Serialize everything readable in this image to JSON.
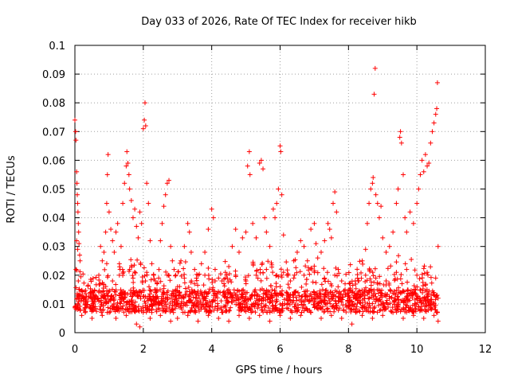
{
  "chart_data": {
    "type": "scatter",
    "title": "Day 033 of 2026, Rate Of TEC Index for receiver hikb",
    "xlabel": "GPS time / hours",
    "ylabel": "ROTI / TECUs",
    "xlim": [
      0,
      12
    ],
    "ylim": [
      0,
      0.1
    ],
    "xticks": [
      0,
      2,
      4,
      6,
      8,
      10,
      12
    ],
    "xtick_labels": [
      "0",
      "2",
      "4",
      "6",
      "8",
      "10",
      "12"
    ],
    "yticks": [
      0,
      0.01,
      0.02,
      0.03,
      0.04,
      0.05,
      0.06,
      0.07,
      0.08,
      0.09,
      0.1
    ],
    "ytick_labels": [
      "0",
      "0.01",
      "0.02",
      "0.03",
      "0.04",
      "0.05",
      "0.06",
      "0.07",
      "0.08",
      "0.09",
      "0.1"
    ],
    "grid": true,
    "marker": "+",
    "series": [
      {
        "name": "ROTI",
        "color": "#ff0000",
        "points": [
          [
            0.0,
            0.074
          ],
          [
            0.02,
            0.07
          ],
          [
            0.03,
            0.067
          ],
          [
            0.05,
            0.056
          ],
          [
            0.06,
            0.052
          ],
          [
            0.07,
            0.048
          ],
          [
            0.08,
            0.045
          ],
          [
            0.09,
            0.042
          ],
          [
            0.1,
            0.038
          ],
          [
            0.11,
            0.035
          ],
          [
            0.12,
            0.031
          ],
          [
            0.14,
            0.027
          ],
          [
            0.15,
            0.025
          ],
          [
            0.05,
            0.032
          ],
          [
            0.08,
            0.029
          ],
          [
            0.03,
            0.022
          ],
          [
            0.1,
            0.018
          ],
          [
            0.12,
            0.015
          ],
          [
            0.15,
            0.013
          ],
          [
            0.2,
            0.012
          ],
          [
            0.25,
            0.011
          ],
          [
            0.3,
            0.01
          ],
          [
            0.35,
            0.009
          ],
          [
            0.4,
            0.012
          ],
          [
            0.45,
            0.014
          ],
          [
            0.5,
            0.011
          ],
          [
            0.55,
            0.013
          ],
          [
            0.6,
            0.009
          ],
          [
            0.65,
            0.012
          ],
          [
            0.7,
            0.02
          ],
          [
            0.75,
            0.03
          ],
          [
            0.8,
            0.025
          ],
          [
            0.85,
            0.028
          ],
          [
            0.9,
            0.035
          ],
          [
            0.93,
            0.045
          ],
          [
            0.95,
            0.055
          ],
          [
            0.97,
            0.062
          ],
          [
            1.0,
            0.042
          ],
          [
            1.05,
            0.036
          ],
          [
            1.1,
            0.032
          ],
          [
            1.15,
            0.028
          ],
          [
            1.2,
            0.035
          ],
          [
            1.25,
            0.038
          ],
          [
            1.3,
            0.024
          ],
          [
            1.35,
            0.03
          ],
          [
            1.4,
            0.045
          ],
          [
            1.45,
            0.052
          ],
          [
            1.5,
            0.058
          ],
          [
            1.52,
            0.063
          ],
          [
            1.55,
            0.059
          ],
          [
            1.58,
            0.055
          ],
          [
            1.6,
            0.05
          ],
          [
            1.65,
            0.046
          ],
          [
            1.7,
            0.04
          ],
          [
            1.75,
            0.043
          ],
          [
            1.8,
            0.037
          ],
          [
            1.85,
            0.033
          ],
          [
            1.9,
            0.042
          ],
          [
            1.95,
            0.038
          ],
          [
            2.0,
            0.071
          ],
          [
            2.03,
            0.074
          ],
          [
            2.05,
            0.08
          ],
          [
            2.07,
            0.072
          ],
          [
            2.1,
            0.052
          ],
          [
            2.15,
            0.045
          ],
          [
            2.2,
            0.032
          ],
          [
            2.25,
            0.024
          ],
          [
            2.3,
            0.02
          ],
          [
            2.35,
            0.018
          ],
          [
            2.4,
            0.015
          ],
          [
            2.45,
            0.019
          ],
          [
            2.5,
            0.032
          ],
          [
            2.55,
            0.038
          ],
          [
            2.6,
            0.044
          ],
          [
            2.65,
            0.048
          ],
          [
            2.7,
            0.052
          ],
          [
            2.75,
            0.053
          ],
          [
            2.8,
            0.03
          ],
          [
            2.85,
            0.025
          ],
          [
            2.9,
            0.022
          ],
          [
            2.95,
            0.02
          ],
          [
            3.0,
            0.016
          ],
          [
            3.1,
            0.025
          ],
          [
            3.2,
            0.03
          ],
          [
            3.3,
            0.038
          ],
          [
            3.35,
            0.035
          ],
          [
            3.4,
            0.028
          ],
          [
            3.5,
            0.022
          ],
          [
            3.6,
            0.02
          ],
          [
            3.7,
            0.024
          ],
          [
            3.8,
            0.028
          ],
          [
            3.9,
            0.036
          ],
          [
            4.0,
            0.043
          ],
          [
            4.05,
            0.04
          ],
          [
            4.1,
            0.022
          ],
          [
            4.2,
            0.019
          ],
          [
            4.3,
            0.018
          ],
          [
            4.4,
            0.021
          ],
          [
            4.5,
            0.023
          ],
          [
            4.6,
            0.03
          ],
          [
            4.7,
            0.036
          ],
          [
            4.8,
            0.028
          ],
          [
            4.9,
            0.033
          ],
          [
            5.0,
            0.035
          ],
          [
            5.05,
            0.058
          ],
          [
            5.1,
            0.063
          ],
          [
            5.12,
            0.055
          ],
          [
            5.2,
            0.038
          ],
          [
            5.3,
            0.033
          ],
          [
            5.4,
            0.059
          ],
          [
            5.45,
            0.06
          ],
          [
            5.5,
            0.057
          ],
          [
            5.55,
            0.04
          ],
          [
            5.6,
            0.035
          ],
          [
            5.7,
            0.03
          ],
          [
            5.8,
            0.043
          ],
          [
            5.85,
            0.04
          ],
          [
            5.9,
            0.045
          ],
          [
            5.95,
            0.05
          ],
          [
            6.0,
            0.065
          ],
          [
            6.02,
            0.063
          ],
          [
            6.05,
            0.048
          ],
          [
            6.1,
            0.034
          ],
          [
            6.2,
            0.02
          ],
          [
            6.3,
            0.018
          ],
          [
            6.4,
            0.025
          ],
          [
            6.5,
            0.028
          ],
          [
            6.6,
            0.032
          ],
          [
            6.7,
            0.03
          ],
          [
            6.8,
            0.025
          ],
          [
            6.9,
            0.036
          ],
          [
            7.0,
            0.038
          ],
          [
            7.05,
            0.031
          ],
          [
            7.1,
            0.026
          ],
          [
            7.2,
            0.028
          ],
          [
            7.3,
            0.032
          ],
          [
            7.4,
            0.038
          ],
          [
            7.45,
            0.036
          ],
          [
            7.5,
            0.033
          ],
          [
            7.55,
            0.045
          ],
          [
            7.6,
            0.049
          ],
          [
            7.65,
            0.042
          ],
          [
            7.7,
            0.022
          ],
          [
            7.8,
            0.018
          ],
          [
            7.9,
            0.015
          ],
          [
            8.0,
            0.013
          ],
          [
            8.1,
            0.014
          ],
          [
            8.2,
            0.012
          ],
          [
            8.3,
            0.018
          ],
          [
            8.4,
            0.025
          ],
          [
            8.5,
            0.029
          ],
          [
            8.55,
            0.038
          ],
          [
            8.6,
            0.045
          ],
          [
            8.65,
            0.05
          ],
          [
            8.7,
            0.052
          ],
          [
            8.72,
            0.054
          ],
          [
            8.75,
            0.083
          ],
          [
            8.78,
            0.092
          ],
          [
            8.8,
            0.048
          ],
          [
            8.85,
            0.045
          ],
          [
            8.9,
            0.04
          ],
          [
            8.95,
            0.044
          ],
          [
            9.0,
            0.033
          ],
          [
            9.1,
            0.028
          ],
          [
            9.2,
            0.03
          ],
          [
            9.3,
            0.035
          ],
          [
            9.4,
            0.045
          ],
          [
            9.45,
            0.05
          ],
          [
            9.5,
            0.068
          ],
          [
            9.52,
            0.07
          ],
          [
            9.55,
            0.066
          ],
          [
            9.6,
            0.055
          ],
          [
            9.65,
            0.04
          ],
          [
            9.7,
            0.035
          ],
          [
            9.8,
            0.042
          ],
          [
            9.9,
            0.038
          ],
          [
            10.0,
            0.045
          ],
          [
            10.05,
            0.05
          ],
          [
            10.1,
            0.055
          ],
          [
            10.15,
            0.06
          ],
          [
            10.2,
            0.056
          ],
          [
            10.25,
            0.062
          ],
          [
            10.3,
            0.058
          ],
          [
            10.35,
            0.059
          ],
          [
            10.4,
            0.066
          ],
          [
            10.45,
            0.07
          ],
          [
            10.5,
            0.073
          ],
          [
            10.55,
            0.076
          ],
          [
            10.58,
            0.078
          ],
          [
            10.6,
            0.087
          ],
          [
            10.62,
            0.03
          ],
          [
            10.62,
            0.012
          ],
          [
            10.6,
            0.007
          ],
          [
            10.62,
            0.004
          ],
          [
            0.2,
            0.006
          ],
          [
            0.3,
            0.007
          ],
          [
            0.5,
            0.005
          ],
          [
            0.8,
            0.006
          ],
          [
            1.0,
            0.007
          ],
          [
            1.2,
            0.005
          ],
          [
            1.5,
            0.006
          ],
          [
            1.8,
            0.003
          ],
          [
            1.9,
            0.002
          ],
          [
            2.2,
            0.005
          ],
          [
            2.5,
            0.006
          ],
          [
            2.8,
            0.004
          ],
          [
            3.0,
            0.005
          ],
          [
            3.3,
            0.006
          ],
          [
            3.6,
            0.004
          ],
          [
            3.9,
            0.006
          ],
          [
            4.2,
            0.005
          ],
          [
            4.5,
            0.004
          ],
          [
            4.8,
            0.006
          ],
          [
            5.1,
            0.005
          ],
          [
            5.4,
            0.006
          ],
          [
            5.7,
            0.004
          ],
          [
            6.0,
            0.006
          ],
          [
            6.3,
            0.005
          ],
          [
            6.6,
            0.006
          ],
          [
            6.9,
            0.007
          ],
          [
            7.2,
            0.005
          ],
          [
            7.5,
            0.006
          ],
          [
            7.8,
            0.005
          ],
          [
            8.1,
            0.003
          ],
          [
            8.4,
            0.006
          ],
          [
            8.7,
            0.005
          ],
          [
            9.0,
            0.006
          ],
          [
            9.3,
            0.007
          ],
          [
            9.6,
            0.005
          ],
          [
            9.9,
            0.006
          ],
          [
            10.2,
            0.005
          ],
          [
            10.5,
            0.006
          ],
          [
            1.1,
            0.018
          ],
          [
            1.3,
            0.02
          ],
          [
            1.6,
            0.022
          ],
          [
            1.7,
            0.019
          ],
          [
            2.1,
            0.021
          ],
          [
            2.4,
            0.017
          ],
          [
            2.7,
            0.02
          ],
          [
            3.2,
            0.019
          ],
          [
            3.5,
            0.017
          ],
          [
            3.8,
            0.02
          ],
          [
            4.1,
            0.018
          ],
          [
            4.4,
            0.019
          ],
          [
            4.7,
            0.02
          ],
          [
            5.0,
            0.018
          ],
          [
            5.3,
            0.02
          ],
          [
            5.6,
            0.022
          ],
          [
            5.9,
            0.02
          ],
          [
            6.1,
            0.021
          ],
          [
            6.4,
            0.019
          ],
          [
            6.7,
            0.02
          ],
          [
            7.0,
            0.021
          ],
          [
            7.3,
            0.019
          ],
          [
            7.6,
            0.02
          ],
          [
            7.9,
            0.017
          ],
          [
            8.2,
            0.018
          ],
          [
            8.5,
            0.02
          ],
          [
            8.8,
            0.019
          ],
          [
            9.1,
            0.018
          ],
          [
            9.4,
            0.021
          ],
          [
            9.7,
            0.022
          ],
          [
            10.0,
            0.02
          ],
          [
            10.3,
            0.021
          ],
          [
            10.55,
            0.019
          ]
        ]
      }
    ]
  }
}
